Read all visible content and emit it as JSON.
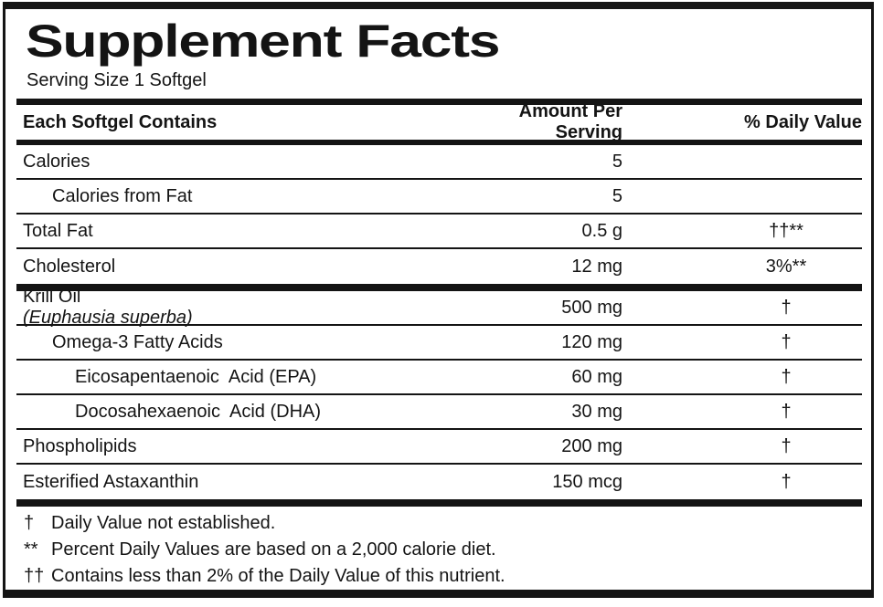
{
  "label": {
    "title": "Supplement Facts",
    "serving_size": "Serving Size 1 Softgel",
    "columns": {
      "name": "Each Softgel Contains",
      "amount": "Amount Per Serving",
      "daily_value": "% Daily Value"
    },
    "rows": [
      {
        "name": "Calories",
        "amount": "5",
        "daily_value": "",
        "indent": 0,
        "section_end": false
      },
      {
        "name": "Calories from Fat",
        "amount": "5",
        "daily_value": "",
        "indent": 1,
        "section_end": false
      },
      {
        "name": "Total Fat",
        "amount": "0.5 g",
        "daily_value": "††**",
        "indent": 0,
        "section_end": false
      },
      {
        "name": "Cholesterol",
        "amount": "12 mg",
        "daily_value": "3%**",
        "indent": 0,
        "section_end": true
      },
      {
        "name": "Krill Oil ",
        "name_italic": "(Euphausia superba)",
        "amount": "500 mg",
        "daily_value": "†",
        "indent": 0,
        "section_end": false
      },
      {
        "name": "Omega-3 Fatty Acids",
        "amount": "120 mg",
        "daily_value": "†",
        "indent": 1,
        "section_end": false
      },
      {
        "name": "Eicosapentaenoic  Acid (EPA)",
        "amount": "60 mg",
        "daily_value": "†",
        "indent": 2,
        "section_end": false
      },
      {
        "name": "Docosahexaenoic  Acid (DHA)",
        "amount": "30 mg",
        "daily_value": "†",
        "indent": 2,
        "section_end": false
      },
      {
        "name": "Phospholipids",
        "amount": "200 mg",
        "daily_value": "†",
        "indent": 0,
        "section_end": false
      },
      {
        "name": "Esterified Astaxanthin",
        "amount": "150 mcg",
        "daily_value": "†",
        "indent": 0,
        "section_end": true
      }
    ],
    "footnotes": [
      {
        "symbol": "†",
        "text": "Daily Value not established."
      },
      {
        "symbol": "**",
        "text": "Percent Daily Values are based on a 2,000 calorie diet."
      },
      {
        "symbol": "††",
        "text": "Contains less than 2% of the Daily Value of this nutrient."
      }
    ],
    "colors": {
      "ink": "#141414",
      "background": "#ffffff"
    }
  }
}
